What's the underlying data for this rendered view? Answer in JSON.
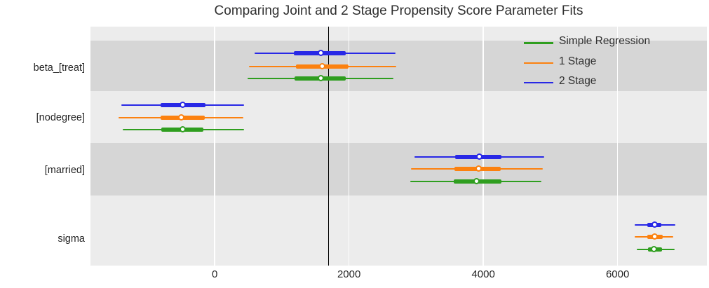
{
  "chart_data": {
    "type": "forest",
    "title": "Comparing Joint and 2 Stage Propensity Score Parameter Fits",
    "xlim": [
      -1850,
      7330
    ],
    "x_ticks": [
      0,
      2000,
      4000,
      6000
    ],
    "x_tick_labels": [
      "0",
      "2000",
      "4000",
      "6000"
    ],
    "vline_x": 1695,
    "grid": "vertical-white",
    "legend_position": "top-right",
    "colors": {
      "Simple Regression": "#2f9e1f",
      "1 Stage": "#fc810f",
      "2 Stage": "#2828e6",
      "band_dark": "#d6d6d6",
      "band_light": "#ececec",
      "vline": "#000000",
      "title_text": "#2e2e2e",
      "tick_text": "#262626"
    },
    "legend": [
      {
        "label": "Simple Regression"
      },
      {
        "label": "1 Stage"
      },
      {
        "label": "2 Stage"
      }
    ],
    "parameters": [
      {
        "label": "beta_[treat]",
        "rows": [
          {
            "model": "2 Stage",
            "point": 1580,
            "inner": [
              1180,
              1955
            ],
            "outer": [
              590,
              2690
            ]
          },
          {
            "model": "1 Stage",
            "point": 1605,
            "inner": [
              1210,
              1995
            ],
            "outer": [
              510,
              2700
            ]
          },
          {
            "model": "Simple Regression",
            "point": 1580,
            "inner": [
              1190,
              1950
            ],
            "outer": [
              490,
              2660
            ]
          }
        ]
      },
      {
        "label": "[nodegree]",
        "rows": [
          {
            "model": "2 Stage",
            "point": -470,
            "inner": [
              -805,
              -140
            ],
            "outer": [
              -1390,
              435
            ]
          },
          {
            "model": "1 Stage",
            "point": -490,
            "inner": [
              -810,
              -150
            ],
            "outer": [
              -1430,
              425
            ]
          },
          {
            "model": "Simple Regression",
            "point": -470,
            "inner": [
              -800,
              -165
            ],
            "outer": [
              -1370,
              440
            ]
          }
        ]
      },
      {
        "label": "[married]",
        "rows": [
          {
            "model": "2 Stage",
            "point": 3940,
            "inner": [
              3580,
              4265
            ],
            "outer": [
              2975,
              4905
            ]
          },
          {
            "model": "1 Stage",
            "point": 3935,
            "inner": [
              3575,
              4255
            ],
            "outer": [
              2925,
              4890
            ]
          },
          {
            "model": "Simple Regression",
            "point": 3905,
            "inner": [
              3560,
              4265
            ],
            "outer": [
              2915,
              4870
            ]
          }
        ]
      },
      {
        "label": "sigma",
        "rows": [
          {
            "model": "2 Stage",
            "point": 6560,
            "inner": [
              6440,
              6655
            ],
            "outer": [
              6255,
              6860
            ]
          },
          {
            "model": "1 Stage",
            "point": 6560,
            "inner": [
              6445,
              6675
            ],
            "outer": [
              6250,
              6830
            ]
          },
          {
            "model": "Simple Regression",
            "point": 6550,
            "inner": [
              6455,
              6665
            ],
            "outer": [
              6285,
              6850
            ]
          }
        ]
      }
    ]
  }
}
